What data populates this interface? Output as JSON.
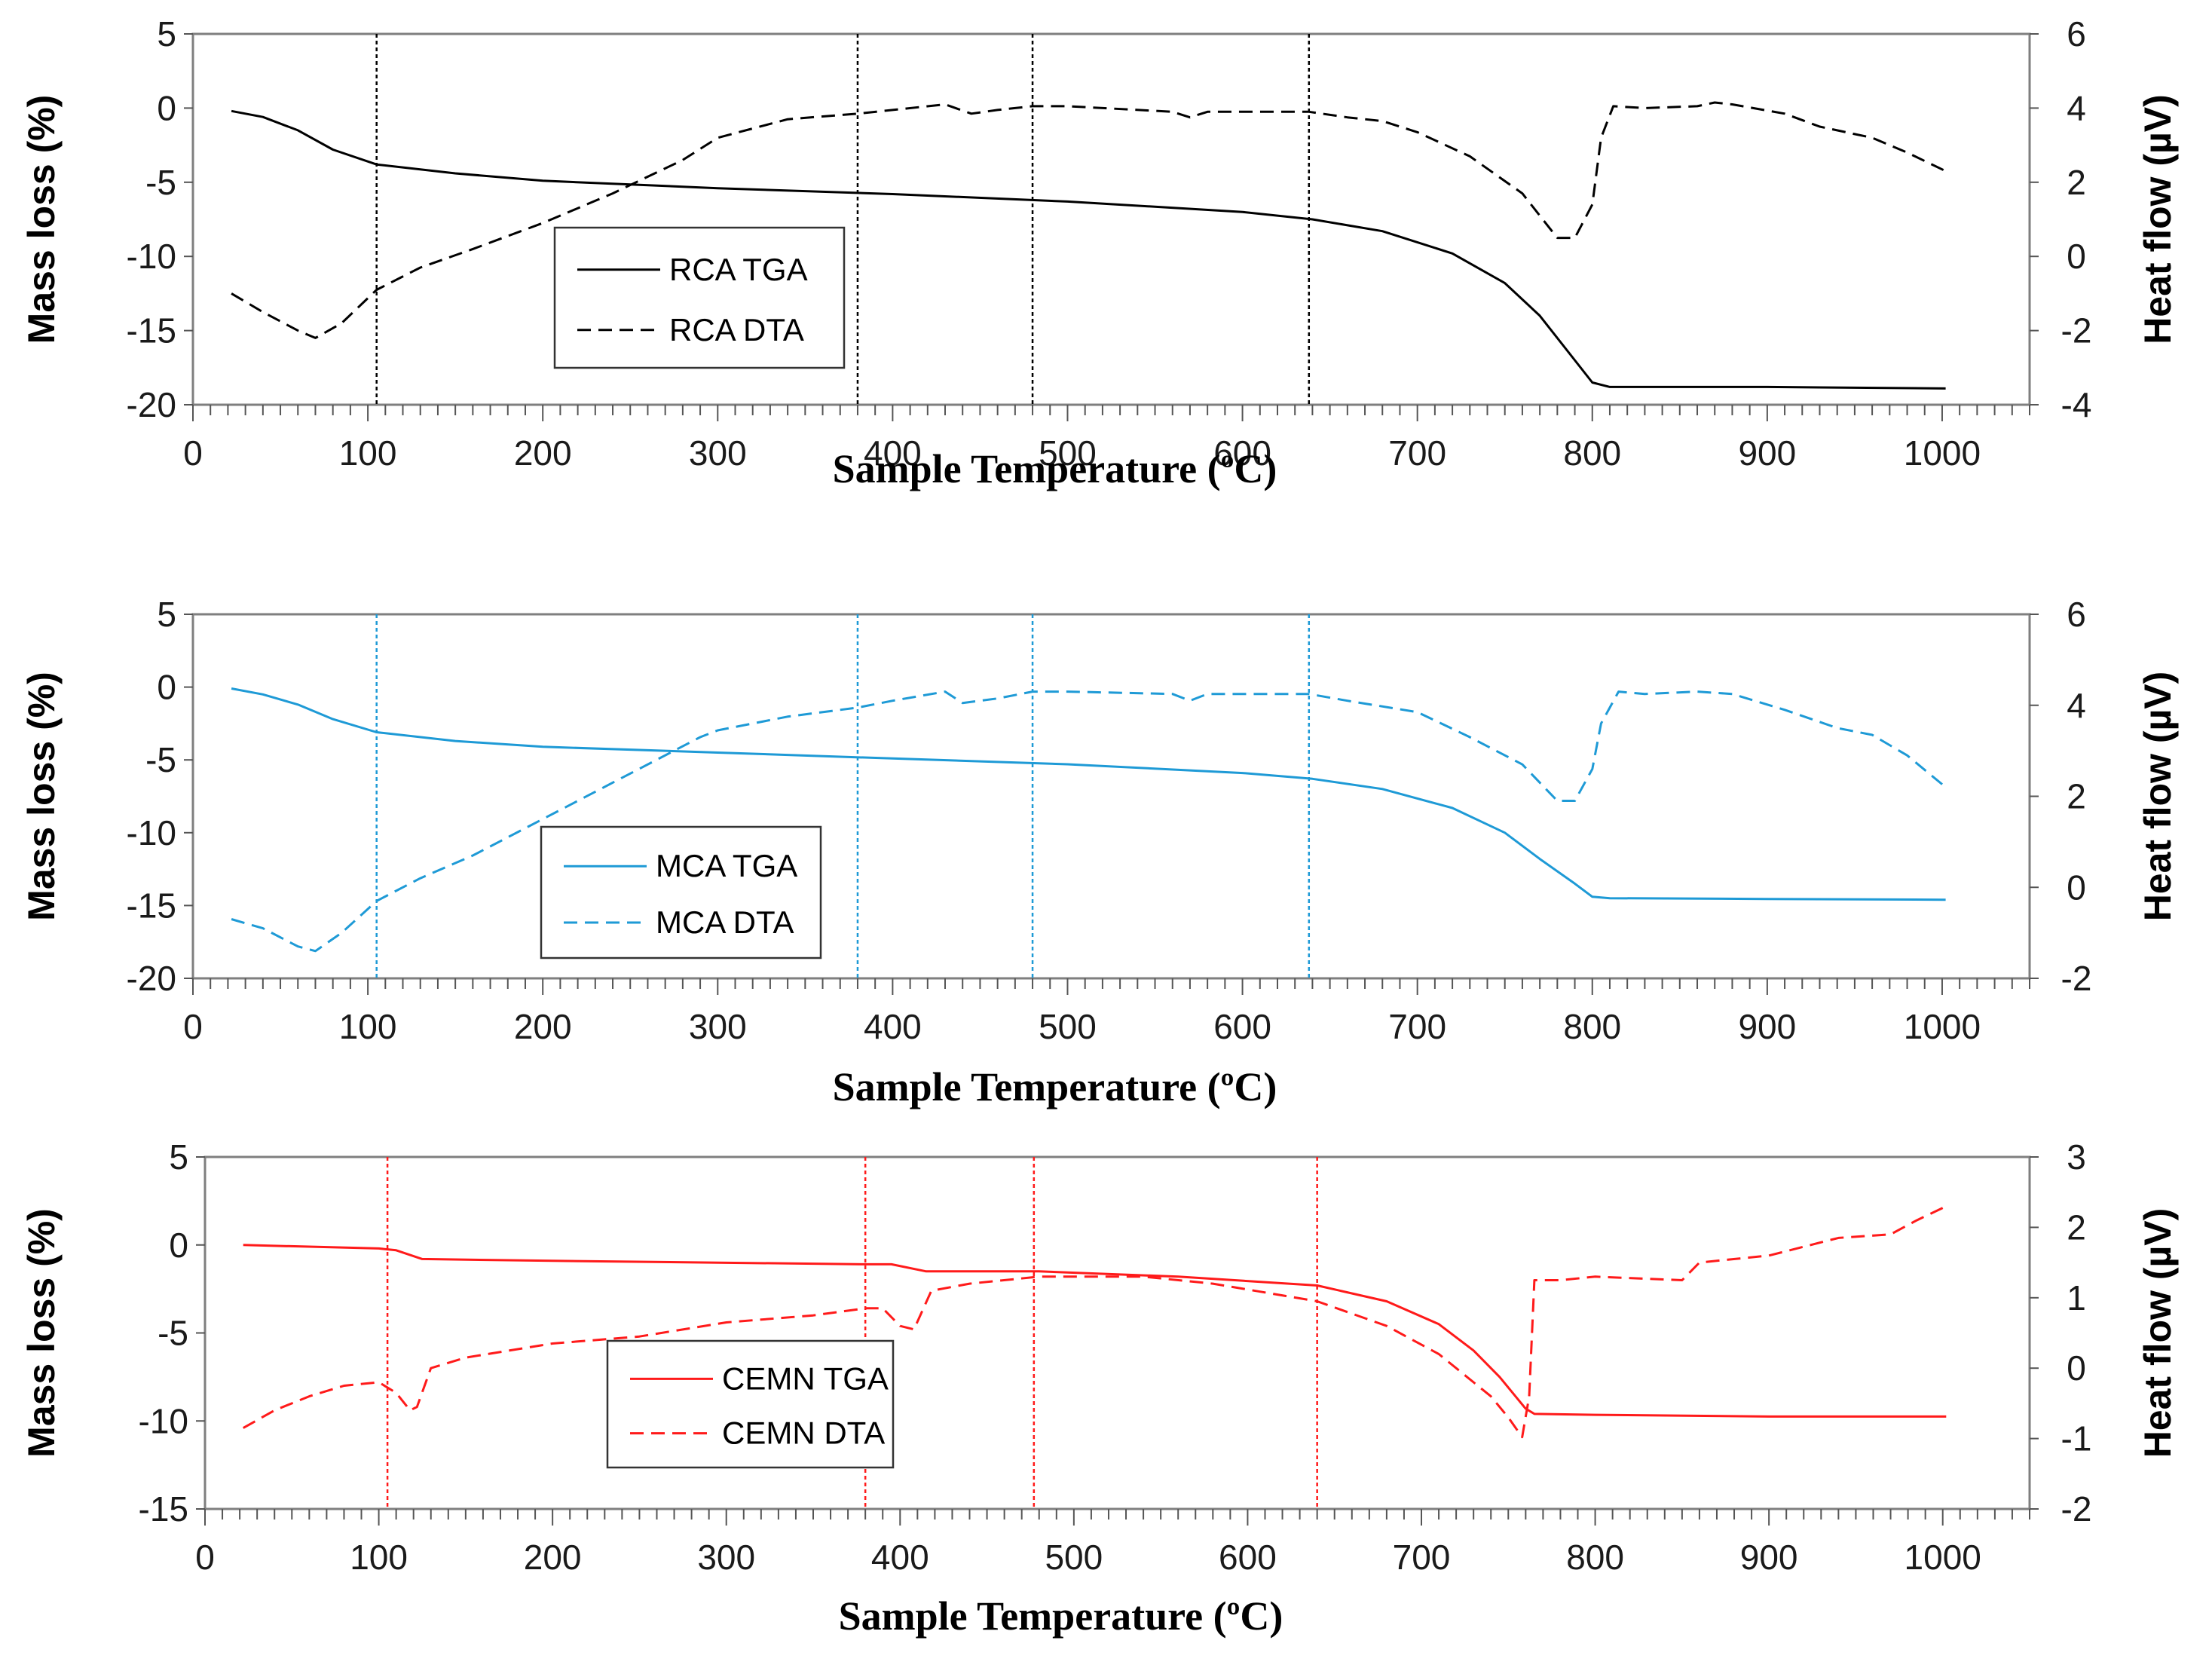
{
  "chart_data": [
    {
      "type": "line",
      "name": "RCA",
      "color": "#000000",
      "xlabel": "Sample Temperature  (ºC)",
      "ylabel": "Mass loss (%)",
      "y2label": "Heat flow (µV)",
      "xlim": [
        0,
        1050
      ],
      "ylim": [
        -20,
        5
      ],
      "y2lim": [
        -4,
        6
      ],
      "x_ticks": [
        0,
        100,
        200,
        300,
        400,
        500,
        600,
        700,
        800,
        900,
        1000
      ],
      "x_tick_labels": [
        "0",
        "100",
        "200",
        "300",
        "400",
        "500",
        "600",
        "700",
        "800",
        "900",
        "1000"
      ],
      "y_ticks": [
        5,
        0,
        -5,
        -10,
        -15,
        -20
      ],
      "y_tick_labels": [
        "5",
        "0",
        "-5",
        "-10",
        "-15",
        "-20"
      ],
      "y2_ticks": [
        6,
        4,
        2,
        0,
        -2,
        -4
      ],
      "y2_tick_labels": [
        "6",
        "4",
        "2",
        "0",
        "-2",
        "-4"
      ],
      "vlines": [
        105,
        380,
        480,
        638
      ],
      "legend": [
        "RCA TGA",
        "RCA DTA"
      ],
      "series": [
        {
          "name": "RCA TGA",
          "axis": "left",
          "style": "solid",
          "points": [
            [
              22,
              -0.2
            ],
            [
              40,
              -0.6
            ],
            [
              60,
              -1.5
            ],
            [
              80,
              -2.8
            ],
            [
              105,
              -3.8
            ],
            [
              150,
              -4.4
            ],
            [
              200,
              -4.9
            ],
            [
              300,
              -5.4
            ],
            [
              400,
              -5.8
            ],
            [
              500,
              -6.3
            ],
            [
              600,
              -7.0
            ],
            [
              640,
              -7.5
            ],
            [
              680,
              -8.3
            ],
            [
              720,
              -9.8
            ],
            [
              750,
              -11.8
            ],
            [
              770,
              -14.0
            ],
            [
              790,
              -17.0
            ],
            [
              800,
              -18.5
            ],
            [
              810,
              -18.8
            ],
            [
              900,
              -18.8
            ],
            [
              1002,
              -18.9
            ]
          ]
        },
        {
          "name": "RCA DTA",
          "axis": "right",
          "style": "dashed",
          "points": [
            [
              22,
              -1.0
            ],
            [
              40,
              -1.5
            ],
            [
              60,
              -2.0
            ],
            [
              70,
              -2.2
            ],
            [
              85,
              -1.8
            ],
            [
              105,
              -0.9
            ],
            [
              130,
              -0.3
            ],
            [
              160,
              0.2
            ],
            [
              200,
              0.9
            ],
            [
              240,
              1.7
            ],
            [
              280,
              2.6
            ],
            [
              300,
              3.2
            ],
            [
              340,
              3.7
            ],
            [
              380,
              3.85
            ],
            [
              400,
              3.95
            ],
            [
              430,
              4.1
            ],
            [
              445,
              3.85
            ],
            [
              460,
              3.95
            ],
            [
              480,
              4.05
            ],
            [
              500,
              4.05
            ],
            [
              560,
              3.9
            ],
            [
              570,
              3.75
            ],
            [
              580,
              3.9
            ],
            [
              638,
              3.9
            ],
            [
              660,
              3.75
            ],
            [
              680,
              3.65
            ],
            [
              700,
              3.35
            ],
            [
              730,
              2.7
            ],
            [
              760,
              1.7
            ],
            [
              780,
              0.5
            ],
            [
              790,
              0.5
            ],
            [
              800,
              1.4
            ],
            [
              805,
              3.2
            ],
            [
              812,
              4.05
            ],
            [
              830,
              4.0
            ],
            [
              860,
              4.05
            ],
            [
              870,
              4.15
            ],
            [
              880,
              4.1
            ],
            [
              910,
              3.85
            ],
            [
              930,
              3.5
            ],
            [
              960,
              3.2
            ],
            [
              980,
              2.8
            ],
            [
              1002,
              2.3
            ]
          ]
        }
      ]
    },
    {
      "type": "line",
      "name": "MCA",
      "color": "#1e9ad6",
      "xlabel": "Sample Temperature  (ºC)",
      "ylabel": "Mass  loss (%)",
      "y2label": "Heat flow (µV)",
      "xlim": [
        0,
        1050
      ],
      "ylim": [
        -20,
        5
      ],
      "y2lim": [
        -2,
        6
      ],
      "x_ticks": [
        0,
        100,
        200,
        300,
        400,
        500,
        600,
        700,
        800,
        900,
        1000
      ],
      "x_tick_labels": [
        "0",
        "100",
        "200",
        "300",
        "400",
        "500",
        "600",
        "700",
        "800",
        "900",
        "1000"
      ],
      "y_ticks": [
        5,
        0,
        -5,
        -10,
        -15,
        -20
      ],
      "y_tick_labels": [
        "5",
        "0",
        "-5",
        "-10",
        "-15",
        "-20"
      ],
      "y2_ticks": [
        6,
        4,
        2,
        0,
        -2
      ],
      "y2_tick_labels": [
        "6",
        "4",
        "2",
        "0",
        "-2"
      ],
      "vlines": [
        105,
        380,
        480,
        638
      ],
      "legend": [
        "MCA TGA",
        "MCA DTA"
      ],
      "series": [
        {
          "name": "MCA TGA",
          "axis": "left",
          "style": "solid",
          "points": [
            [
              22,
              -0.1
            ],
            [
              40,
              -0.5
            ],
            [
              60,
              -1.2
            ],
            [
              80,
              -2.2
            ],
            [
              105,
              -3.1
            ],
            [
              150,
              -3.7
            ],
            [
              200,
              -4.1
            ],
            [
              300,
              -4.5
            ],
            [
              400,
              -4.9
            ],
            [
              500,
              -5.3
            ],
            [
              600,
              -5.9
            ],
            [
              640,
              -6.3
            ],
            [
              680,
              -7.0
            ],
            [
              720,
              -8.3
            ],
            [
              750,
              -10.0
            ],
            [
              770,
              -11.8
            ],
            [
              790,
              -13.5
            ],
            [
              800,
              -14.4
            ],
            [
              810,
              -14.5
            ],
            [
              900,
              -14.55
            ],
            [
              1002,
              -14.6
            ]
          ]
        },
        {
          "name": "MCA DTA",
          "axis": "right",
          "style": "dashed",
          "points": [
            [
              22,
              -0.7
            ],
            [
              40,
              -0.9
            ],
            [
              60,
              -1.3
            ],
            [
              70,
              -1.4
            ],
            [
              85,
              -1.0
            ],
            [
              105,
              -0.3
            ],
            [
              130,
              0.2
            ],
            [
              160,
              0.7
            ],
            [
              200,
              1.5
            ],
            [
              250,
              2.5
            ],
            [
              290,
              3.3
            ],
            [
              300,
              3.45
            ],
            [
              340,
              3.75
            ],
            [
              380,
              3.95
            ],
            [
              400,
              4.1
            ],
            [
              430,
              4.3
            ],
            [
              440,
              4.05
            ],
            [
              460,
              4.15
            ],
            [
              480,
              4.3
            ],
            [
              500,
              4.3
            ],
            [
              560,
              4.25
            ],
            [
              570,
              4.1
            ],
            [
              580,
              4.25
            ],
            [
              638,
              4.25
            ],
            [
              660,
              4.1
            ],
            [
              700,
              3.85
            ],
            [
              730,
              3.3
            ],
            [
              760,
              2.7
            ],
            [
              780,
              1.9
            ],
            [
              790,
              1.9
            ],
            [
              800,
              2.6
            ],
            [
              805,
              3.6
            ],
            [
              815,
              4.3
            ],
            [
              830,
              4.25
            ],
            [
              860,
              4.3
            ],
            [
              880,
              4.25
            ],
            [
              910,
              3.9
            ],
            [
              940,
              3.5
            ],
            [
              960,
              3.35
            ],
            [
              980,
              2.9
            ],
            [
              1002,
              2.2
            ]
          ]
        }
      ]
    },
    {
      "type": "line",
      "name": "CEMN",
      "color": "#ff1a1a",
      "xlabel": "Sample Temperature  (ºC)",
      "ylabel": "Mass  loss (%)",
      "y2label": "Heat flow (µV)",
      "xlim": [
        0,
        1050
      ],
      "ylim": [
        -15,
        5
      ],
      "y2lim": [
        -2,
        3
      ],
      "x_ticks": [
        0,
        100,
        200,
        300,
        400,
        500,
        600,
        700,
        800,
        900,
        1000
      ],
      "x_tick_labels": [
        "0",
        "100",
        "200",
        "300",
        "400",
        "500",
        "600",
        "700",
        "800",
        "900",
        "1000"
      ],
      "y_ticks": [
        5,
        0,
        -5,
        -10,
        -15
      ],
      "y_tick_labels": [
        "5",
        "0",
        "-5",
        "-10",
        "-15"
      ],
      "y2_ticks": [
        3,
        2,
        1,
        0,
        -1,
        -2
      ],
      "y2_tick_labels": [
        "3",
        "2",
        "1",
        "0",
        "-1",
        "-2"
      ],
      "vlines": [
        105,
        380,
        477,
        640
      ],
      "legend": [
        "CEMN TGA",
        "CEMN DTA"
      ],
      "series": [
        {
          "name": "CEMN TGA",
          "axis": "left",
          "style": "solid",
          "points": [
            [
              22,
              0.0
            ],
            [
              100,
              -0.2
            ],
            [
              110,
              -0.3
            ],
            [
              125,
              -0.8
            ],
            [
              200,
              -0.9
            ],
            [
              380,
              -1.1
            ],
            [
              395,
              -1.1
            ],
            [
              415,
              -1.5
            ],
            [
              480,
              -1.5
            ],
            [
              560,
              -1.8
            ],
            [
              640,
              -2.3
            ],
            [
              680,
              -3.2
            ],
            [
              710,
              -4.5
            ],
            [
              730,
              -6.0
            ],
            [
              745,
              -7.5
            ],
            [
              760,
              -9.3
            ],
            [
              765,
              -9.6
            ],
            [
              800,
              -9.65
            ],
            [
              900,
              -9.75
            ],
            [
              1002,
              -9.75
            ]
          ]
        },
        {
          "name": "CEMN DTA",
          "axis": "right",
          "style": "dashed",
          "points": [
            [
              22,
              -0.85
            ],
            [
              40,
              -0.6
            ],
            [
              60,
              -0.4
            ],
            [
              80,
              -0.25
            ],
            [
              100,
              -0.2
            ],
            [
              110,
              -0.35
            ],
            [
              118,
              -0.6
            ],
            [
              122,
              -0.55
            ],
            [
              130,
              0.0
            ],
            [
              150,
              0.15
            ],
            [
              200,
              0.35
            ],
            [
              250,
              0.45
            ],
            [
              300,
              0.65
            ],
            [
              350,
              0.75
            ],
            [
              380,
              0.85
            ],
            [
              390,
              0.85
            ],
            [
              400,
              0.6
            ],
            [
              408,
              0.55
            ],
            [
              418,
              1.1
            ],
            [
              440,
              1.2
            ],
            [
              480,
              1.3
            ],
            [
              540,
              1.3
            ],
            [
              580,
              1.2
            ],
            [
              640,
              0.95
            ],
            [
              680,
              0.6
            ],
            [
              710,
              0.2
            ],
            [
              740,
              -0.4
            ],
            [
              750,
              -0.7
            ],
            [
              758,
              -0.98
            ],
            [
              762,
              -0.4
            ],
            [
              765,
              1.25
            ],
            [
              780,
              1.25
            ],
            [
              800,
              1.3
            ],
            [
              850,
              1.25
            ],
            [
              860,
              1.5
            ],
            [
              900,
              1.6
            ],
            [
              940,
              1.85
            ],
            [
              970,
              1.9
            ],
            [
              985,
              2.1
            ],
            [
              1002,
              2.3
            ]
          ]
        }
      ]
    }
  ]
}
